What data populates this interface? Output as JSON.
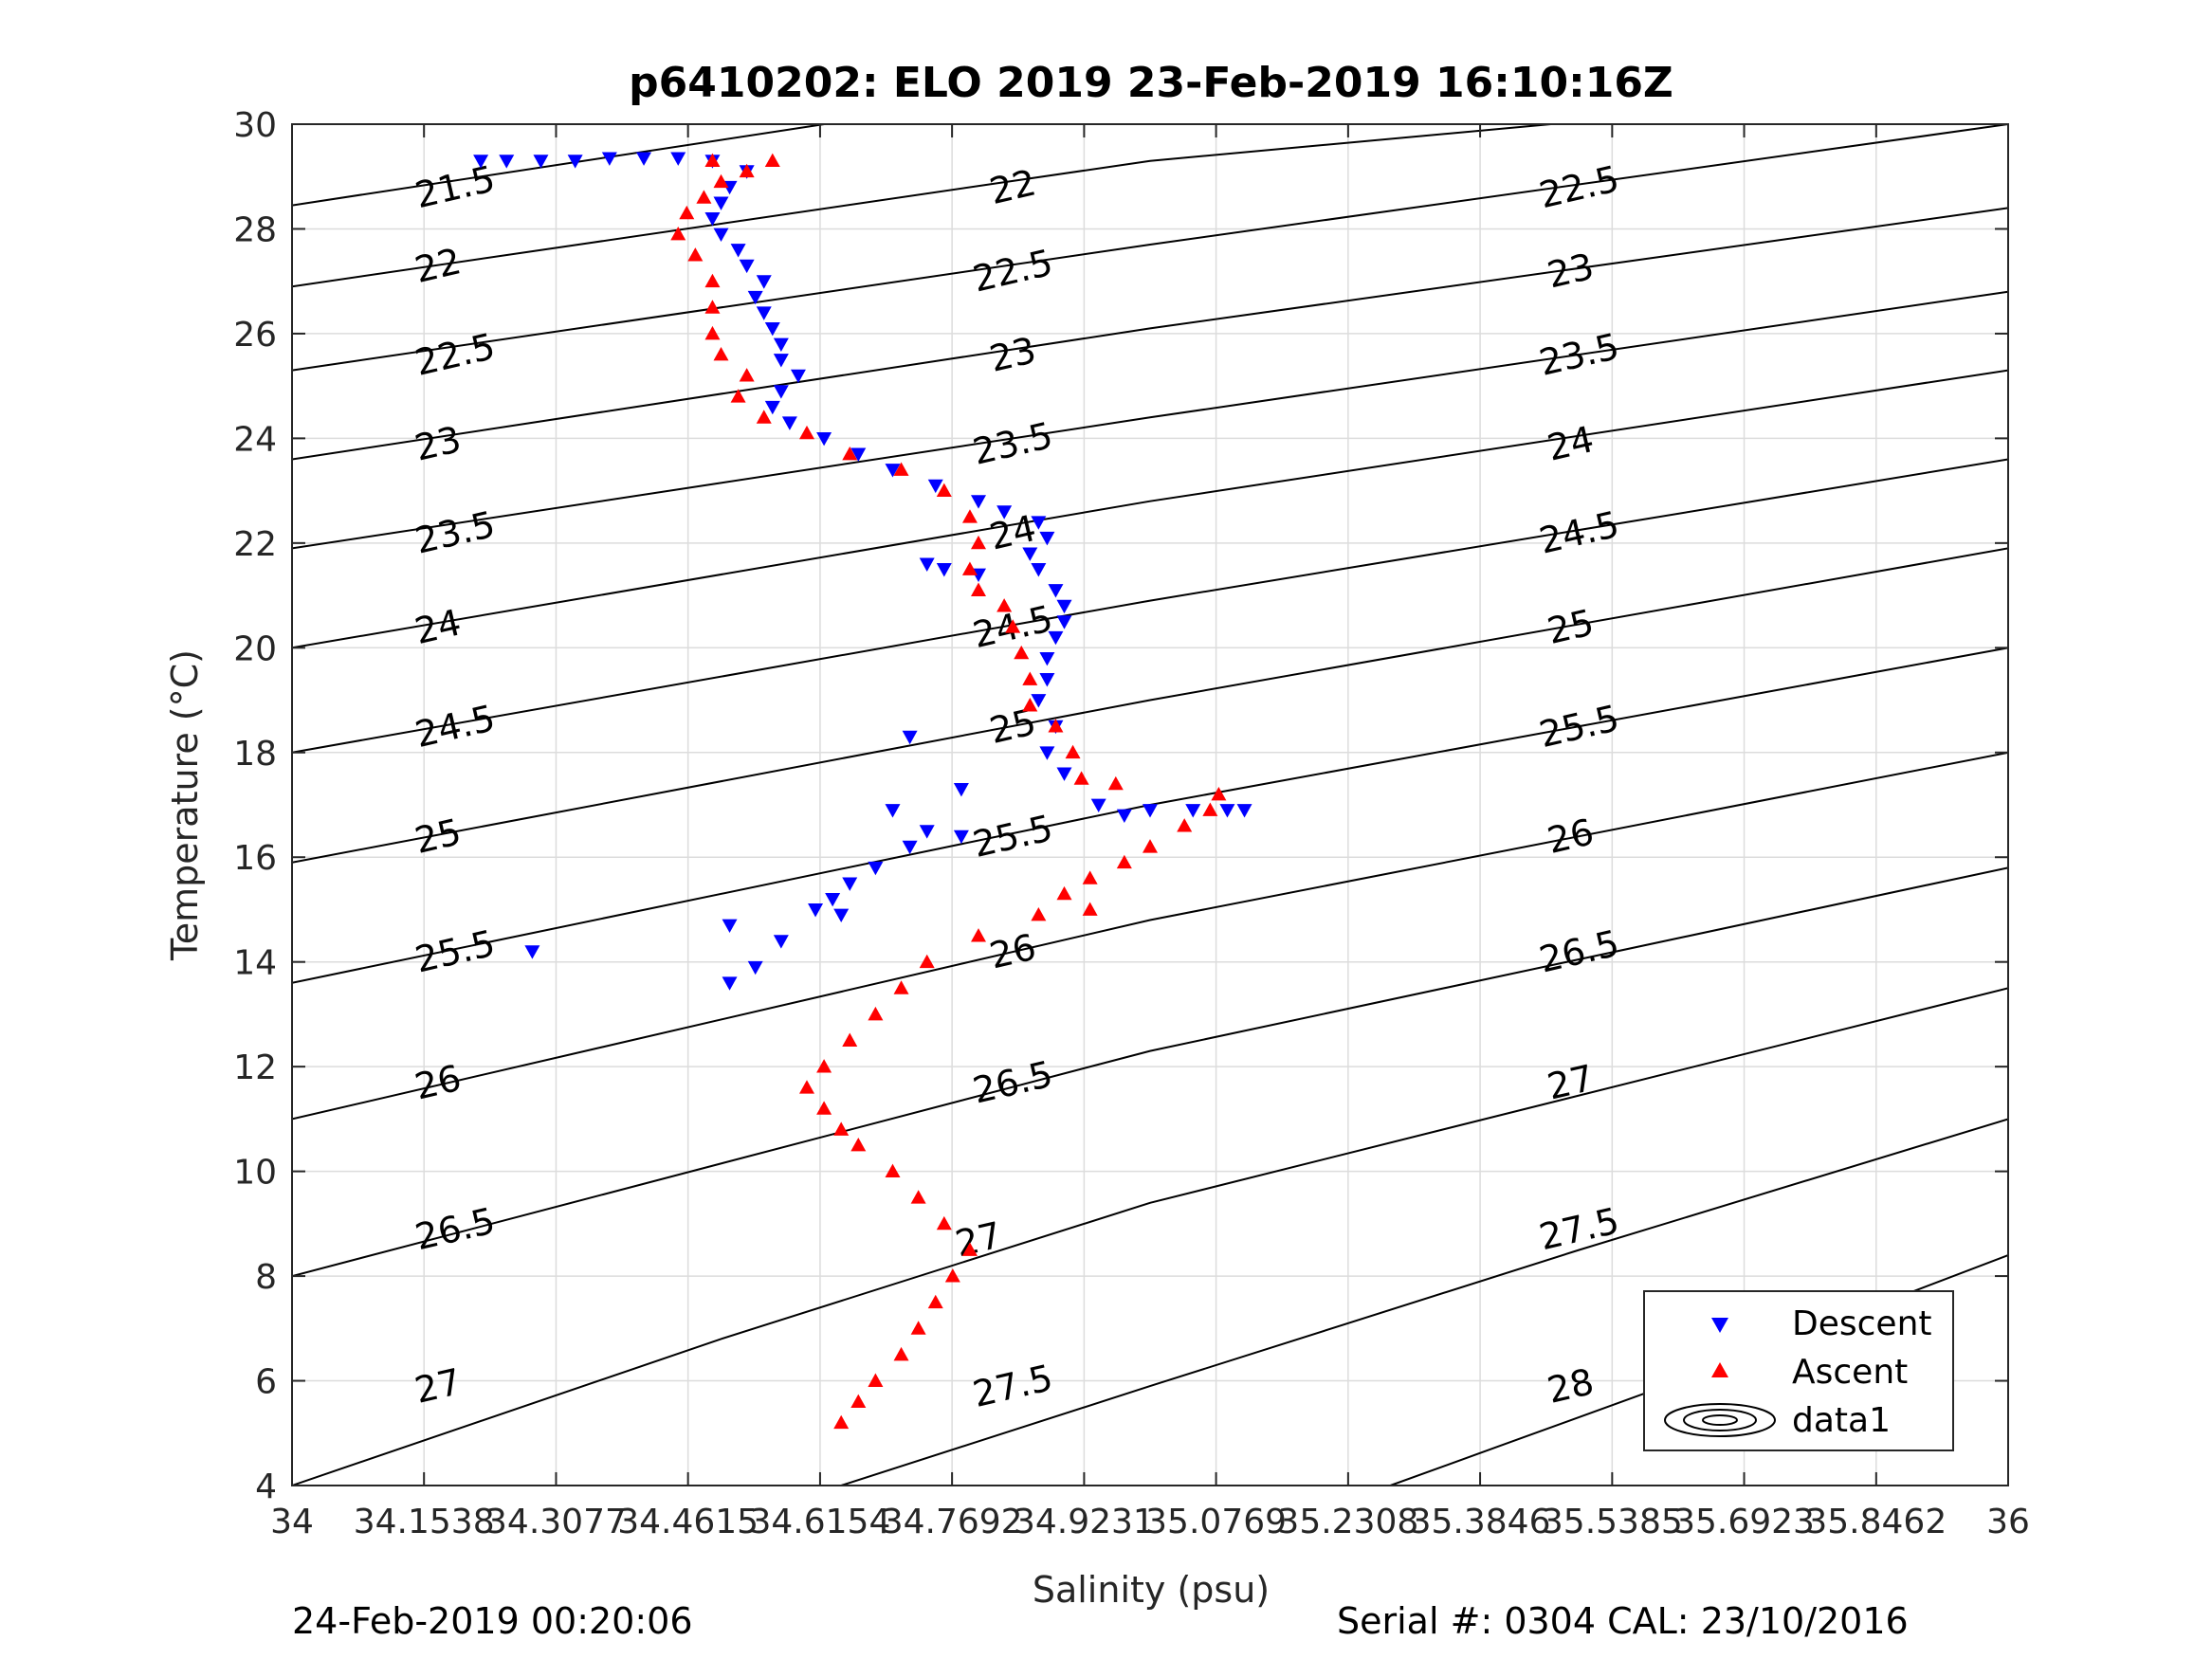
{
  "chart_data": {
    "type": "scatter",
    "title": "p6410202: ELO 2019 23-Feb-2019 16:10:16Z",
    "xlabel": "Salinity (psu)",
    "ylabel": "Temperature (°C)",
    "xlim": [
      34,
      36
    ],
    "ylim": [
      4,
      30
    ],
    "x_ticks": [
      34,
      34.1538,
      34.3077,
      34.4615,
      34.6154,
      34.7692,
      34.9231,
      35.0769,
      35.2308,
      35.3846,
      35.5385,
      35.6923,
      35.8462,
      36
    ],
    "x_tick_labels": [
      "34",
      "34.1538",
      "34.3077",
      "34.4615",
      "34.6154",
      "34.7692",
      "34.9231",
      "35.0769",
      "35.2308",
      "35.3846",
      "35.5385",
      "35.6923",
      "35.8462",
      "36"
    ],
    "y_ticks": [
      4,
      6,
      8,
      10,
      12,
      14,
      16,
      18,
      20,
      22,
      24,
      26,
      28,
      30
    ],
    "y_tick_labels": [
      "4",
      "6",
      "8",
      "10",
      "12",
      "14",
      "16",
      "18",
      "20",
      "22",
      "24",
      "26",
      "28",
      "30"
    ],
    "grid": true,
    "legend_position": "bottom-right",
    "legend": [
      "Descent",
      "Ascent",
      "data1"
    ],
    "density_contours": {
      "name": "data1",
      "lines": [
        {
          "label": "21.5",
          "points": [
            [
              34.0,
              28.45
            ],
            [
              34.7,
              30.2
            ]
          ]
        },
        {
          "label": "22",
          "points": [
            [
              34.0,
              26.9
            ],
            [
              35.0,
              29.3
            ],
            [
              35.6,
              30.2
            ]
          ]
        },
        {
          "label": "22.5",
          "points": [
            [
              34.0,
              25.3
            ],
            [
              35.0,
              27.7
            ],
            [
              36.0,
              30.0
            ]
          ]
        },
        {
          "label": "23",
          "points": [
            [
              34.0,
              23.6
            ],
            [
              35.0,
              26.1
            ],
            [
              36.0,
              28.4
            ]
          ]
        },
        {
          "label": "23.5",
          "points": [
            [
              34.0,
              21.9
            ],
            [
              35.0,
              24.4
            ],
            [
              36.0,
              26.8
            ]
          ]
        },
        {
          "label": "24",
          "points": [
            [
              34.0,
              20.0
            ],
            [
              35.0,
              22.8
            ],
            [
              36.0,
              25.3
            ]
          ]
        },
        {
          "label": "24.5",
          "points": [
            [
              34.0,
              18.0
            ],
            [
              35.0,
              20.9
            ],
            [
              36.0,
              23.6
            ]
          ]
        },
        {
          "label": "25",
          "points": [
            [
              34.0,
              15.9
            ],
            [
              35.0,
              19.0
            ],
            [
              36.0,
              21.9
            ]
          ]
        },
        {
          "label": "25.5",
          "points": [
            [
              34.0,
              13.6
            ],
            [
              35.0,
              17.0
            ],
            [
              36.0,
              20.0
            ]
          ]
        },
        {
          "label": "26",
          "points": [
            [
              34.0,
              11.0
            ],
            [
              35.0,
              14.8
            ],
            [
              36.0,
              18.0
            ]
          ]
        },
        {
          "label": "26.5",
          "points": [
            [
              34.0,
              8.0
            ],
            [
              35.0,
              12.3
            ],
            [
              36.0,
              15.8
            ]
          ]
        },
        {
          "label": "27",
          "points": [
            [
              34.0,
              4.0
            ],
            [
              34.5,
              6.8
            ],
            [
              35.0,
              9.4
            ],
            [
              36.0,
              13.5
            ]
          ]
        },
        {
          "label": "27.5",
          "points": [
            [
              34.64,
              4.0
            ],
            [
              35.0,
              5.9
            ],
            [
              35.5,
              8.5
            ],
            [
              36.0,
              11.0
            ]
          ]
        },
        {
          "label": "28",
          "points": [
            [
              35.28,
              4.0
            ],
            [
              35.6,
              5.9
            ],
            [
              36.0,
              8.4
            ]
          ]
        }
      ],
      "inline_labels": [
        {
          "text": "21.5",
          "s": 34.19,
          "t": 28.8
        },
        {
          "text": "22",
          "s": 34.84,
          "t": 28.8
        },
        {
          "text": "22.5",
          "s": 35.5,
          "t": 28.8
        },
        {
          "text": "22",
          "s": 34.17,
          "t": 27.3
        },
        {
          "text": "22.5",
          "s": 34.84,
          "t": 27.2
        },
        {
          "text": "23",
          "s": 35.49,
          "t": 27.2
        },
        {
          "text": "22.5",
          "s": 34.19,
          "t": 25.6
        },
        {
          "text": "23",
          "s": 34.84,
          "t": 25.6
        },
        {
          "text": "23.5",
          "s": 35.5,
          "t": 25.6
        },
        {
          "text": "23",
          "s": 34.17,
          "t": 23.9
        },
        {
          "text": "23.5",
          "s": 34.84,
          "t": 23.9
        },
        {
          "text": "24",
          "s": 35.49,
          "t": 23.9
        },
        {
          "text": "23.5",
          "s": 34.19,
          "t": 22.2
        },
        {
          "text": "24",
          "s": 34.84,
          "t": 22.2
        },
        {
          "text": "24.5",
          "s": 35.5,
          "t": 22.2
        },
        {
          "text": "24",
          "s": 34.17,
          "t": 20.4
        },
        {
          "text": "24.5",
          "s": 34.84,
          "t": 20.4
        },
        {
          "text": "25",
          "s": 35.49,
          "t": 20.4
        },
        {
          "text": "24.5",
          "s": 34.19,
          "t": 18.5
        },
        {
          "text": "25",
          "s": 34.84,
          "t": 18.5
        },
        {
          "text": "25.5",
          "s": 35.5,
          "t": 18.5
        },
        {
          "text": "25",
          "s": 34.17,
          "t": 16.4
        },
        {
          "text": "25.5",
          "s": 34.84,
          "t": 16.4
        },
        {
          "text": "26",
          "s": 35.49,
          "t": 16.4
        },
        {
          "text": "25.5",
          "s": 34.19,
          "t": 14.2
        },
        {
          "text": "26",
          "s": 34.84,
          "t": 14.2
        },
        {
          "text": "26.5",
          "s": 35.5,
          "t": 14.2
        },
        {
          "text": "26",
          "s": 34.17,
          "t": 11.7
        },
        {
          "text": "26.5",
          "s": 34.84,
          "t": 11.7
        },
        {
          "text": "27",
          "s": 35.49,
          "t": 11.7
        },
        {
          "text": "26.5",
          "s": 34.19,
          "t": 8.9
        },
        {
          "text": "27",
          "s": 34.8,
          "t": 8.7
        },
        {
          "text": "27.5",
          "s": 35.5,
          "t": 8.9
        },
        {
          "text": "27",
          "s": 34.17,
          "t": 5.9
        },
        {
          "text": "27.5",
          "s": 34.84,
          "t": 5.9
        },
        {
          "text": "28",
          "s": 35.49,
          "t": 5.9
        }
      ]
    },
    "series": [
      {
        "name": "Descent",
        "marker": "triangle-down",
        "color": "#0000ff",
        "points": [
          [
            34.22,
            29.3
          ],
          [
            34.25,
            29.3
          ],
          [
            34.29,
            29.3
          ],
          [
            34.33,
            29.3
          ],
          [
            34.37,
            29.35
          ],
          [
            34.41,
            29.35
          ],
          [
            34.45,
            29.35
          ],
          [
            34.49,
            29.3
          ],
          [
            34.53,
            29.1
          ],
          [
            34.51,
            28.8
          ],
          [
            34.5,
            28.5
          ],
          [
            34.49,
            28.2
          ],
          [
            34.5,
            27.9
          ],
          [
            34.52,
            27.6
          ],
          [
            34.53,
            27.3
          ],
          [
            34.55,
            27.0
          ],
          [
            34.54,
            26.7
          ],
          [
            34.55,
            26.4
          ],
          [
            34.56,
            26.1
          ],
          [
            34.57,
            25.8
          ],
          [
            34.57,
            25.5
          ],
          [
            34.59,
            25.2
          ],
          [
            34.57,
            24.9
          ],
          [
            34.56,
            24.6
          ],
          [
            34.58,
            24.3
          ],
          [
            34.62,
            24.0
          ],
          [
            34.66,
            23.7
          ],
          [
            34.7,
            23.4
          ],
          [
            34.75,
            23.1
          ],
          [
            34.8,
            22.8
          ],
          [
            34.83,
            22.6
          ],
          [
            34.87,
            22.4
          ],
          [
            34.88,
            22.1
          ],
          [
            34.86,
            21.8
          ],
          [
            34.87,
            21.5
          ],
          [
            34.89,
            21.1
          ],
          [
            34.9,
            20.8
          ],
          [
            34.9,
            20.5
          ],
          [
            34.89,
            20.2
          ],
          [
            34.88,
            19.8
          ],
          [
            34.88,
            19.4
          ],
          [
            34.87,
            19.0
          ],
          [
            34.89,
            18.5
          ],
          [
            34.88,
            18.0
          ],
          [
            34.9,
            17.6
          ],
          [
            34.74,
            21.6
          ],
          [
            34.76,
            21.5
          ],
          [
            34.8,
            21.4
          ],
          [
            34.72,
            18.3
          ],
          [
            34.78,
            17.3
          ],
          [
            34.7,
            16.9
          ],
          [
            34.78,
            16.4
          ],
          [
            34.94,
            17.0
          ],
          [
            34.97,
            16.8
          ],
          [
            35.0,
            16.9
          ],
          [
            35.05,
            16.9
          ],
          [
            35.09,
            16.9
          ],
          [
            35.11,
            16.9
          ],
          [
            34.74,
            16.5
          ],
          [
            34.72,
            16.2
          ],
          [
            34.68,
            15.8
          ],
          [
            34.65,
            15.5
          ],
          [
            34.63,
            15.2
          ],
          [
            34.61,
            15.0
          ],
          [
            34.64,
            14.9
          ],
          [
            34.57,
            14.4
          ],
          [
            34.54,
            13.9
          ],
          [
            34.51,
            13.6
          ],
          [
            34.51,
            14.7
          ],
          [
            34.28,
            14.2
          ]
        ]
      },
      {
        "name": "Ascent",
        "marker": "triangle-up",
        "color": "#ff0000",
        "points": [
          [
            34.64,
            5.2
          ],
          [
            34.66,
            5.6
          ],
          [
            34.68,
            6.0
          ],
          [
            34.71,
            6.5
          ],
          [
            34.73,
            7.0
          ],
          [
            34.75,
            7.5
          ],
          [
            34.77,
            8.0
          ],
          [
            34.79,
            8.5
          ],
          [
            34.76,
            9.0
          ],
          [
            34.73,
            9.5
          ],
          [
            34.7,
            10.0
          ],
          [
            34.66,
            10.5
          ],
          [
            34.64,
            10.8
          ],
          [
            34.62,
            11.2
          ],
          [
            34.6,
            11.6
          ],
          [
            34.62,
            12.0
          ],
          [
            34.65,
            12.5
          ],
          [
            34.68,
            13.0
          ],
          [
            34.71,
            13.5
          ],
          [
            34.74,
            14.0
          ],
          [
            34.8,
            14.5
          ],
          [
            34.87,
            14.9
          ],
          [
            34.93,
            15.0
          ],
          [
            34.9,
            15.3
          ],
          [
            34.93,
            15.6
          ],
          [
            34.97,
            15.9
          ],
          [
            35.0,
            16.2
          ],
          [
            35.04,
            16.6
          ],
          [
            35.07,
            16.9
          ],
          [
            35.08,
            17.2
          ],
          [
            34.96,
            17.4
          ],
          [
            34.92,
            17.5
          ],
          [
            34.91,
            18.0
          ],
          [
            34.89,
            18.5
          ],
          [
            34.86,
            18.9
          ],
          [
            34.86,
            19.4
          ],
          [
            34.85,
            19.9
          ],
          [
            34.84,
            20.4
          ],
          [
            34.83,
            20.8
          ],
          [
            34.8,
            21.1
          ],
          [
            34.79,
            21.5
          ],
          [
            34.8,
            22.0
          ],
          [
            34.79,
            22.5
          ],
          [
            34.76,
            23.0
          ],
          [
            34.71,
            23.4
          ],
          [
            34.65,
            23.7
          ],
          [
            34.6,
            24.1
          ],
          [
            34.55,
            24.4
          ],
          [
            34.52,
            24.8
          ],
          [
            34.53,
            25.2
          ],
          [
            34.5,
            25.6
          ],
          [
            34.49,
            26.0
          ],
          [
            34.49,
            26.5
          ],
          [
            34.49,
            27.0
          ],
          [
            34.47,
            27.5
          ],
          [
            34.45,
            27.9
          ],
          [
            34.46,
            28.3
          ],
          [
            34.48,
            28.6
          ],
          [
            34.5,
            28.9
          ],
          [
            34.53,
            29.1
          ],
          [
            34.56,
            29.3
          ],
          [
            34.49,
            29.3
          ]
        ]
      }
    ]
  },
  "footer": {
    "timestamp": "24-Feb-2019 00:20:06",
    "serial": "Serial #: 0304  CAL: 23/10/2016"
  },
  "colors": {
    "descent": "#0000ff",
    "ascent": "#ff0000",
    "grid": "#dcdcdc",
    "axis": "#262626"
  }
}
